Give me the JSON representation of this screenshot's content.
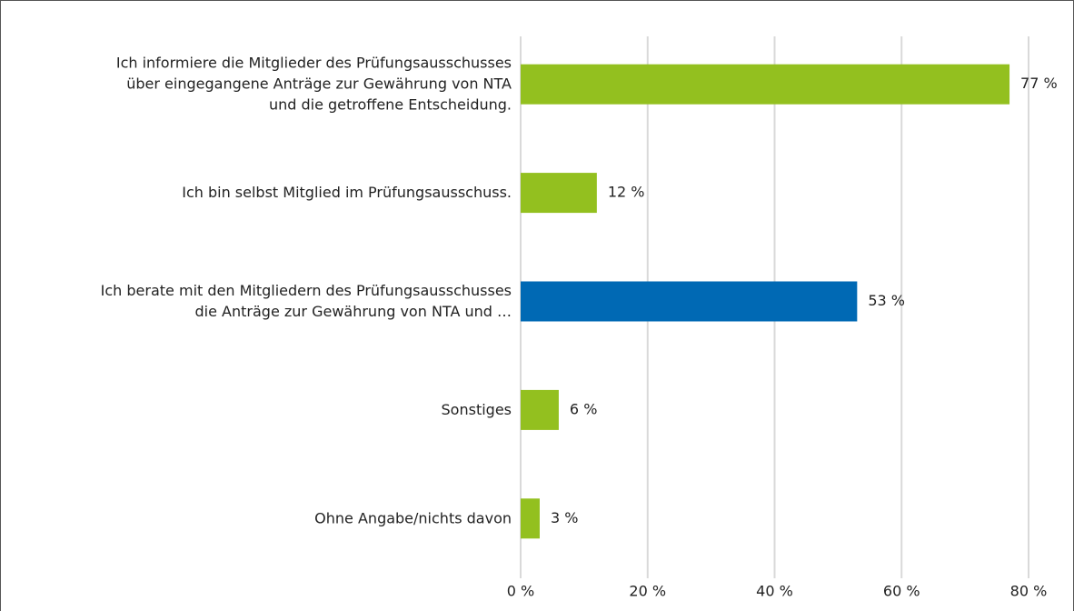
{
  "chart_data": {
    "type": "hbar",
    "categories": [
      "Ich informiere die Mitglieder des Prüfungsausschusses\nüber eingegangene Anträge zur Gewährung von NTA\nund die getroffene Entscheidung.",
      "Ich bin selbst Mitglied im Prüfungsausschuss.",
      "Ich berate mit den Mitgliedern des Prüfungsausschusses\ndie Anträge zur Gewährung von NTA und …",
      "Sonstiges",
      "Ohne Angabe/nichts davon"
    ],
    "values": [
      77,
      12,
      53,
      6,
      3
    ],
    "value_labels": [
      "77 %",
      "12 %",
      "53 %",
      "6 %",
      "3 %"
    ],
    "colors": [
      "#93c01f",
      "#93c01f",
      "#0069b4",
      "#93c01f",
      "#93c01f"
    ],
    "xlim": [
      0,
      80
    ],
    "xticks": [
      {
        "value": 0,
        "label": "0 %"
      },
      {
        "value": 20,
        "label": "20 %"
      },
      {
        "value": 40,
        "label": "40 %"
      },
      {
        "value": 60,
        "label": "60 %"
      },
      {
        "value": 80,
        "label": "80 %"
      }
    ],
    "grid": true
  }
}
